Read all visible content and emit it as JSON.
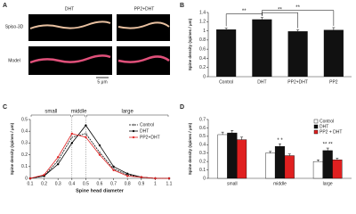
{
  "panel_a": {
    "label": "A",
    "columns": [
      "DHT",
      "PP2+DHT"
    ],
    "rows": [
      "Spiso-3D",
      "Model"
    ],
    "scale_bar": "5 μm"
  },
  "chart_data": [
    {
      "type": "bar",
      "panel": "B",
      "categories": [
        "Control",
        "DHT",
        "PP2+DHT",
        "PP2"
      ],
      "values": [
        1.03,
        1.25,
        0.99,
        1.02
      ],
      "errors": [
        0.03,
        0.04,
        0.03,
        0.05
      ],
      "color": "#111111",
      "ylim": [
        0,
        1.4
      ],
      "yticks": [
        0,
        0.2,
        0.4,
        0.6,
        0.8,
        1,
        1.2,
        1.4
      ],
      "ylabel": "Spine density (spines / μm)",
      "annotations": [
        {
          "text": "**",
          "between": [
            "Control",
            "DHT"
          ]
        },
        {
          "text": "**",
          "between": [
            "DHT",
            "PP2+DHT"
          ]
        },
        {
          "text": "**",
          "between": [
            "DHT",
            "PP2"
          ]
        }
      ]
    },
    {
      "type": "line",
      "panel": "C",
      "x": [
        0.1,
        0.2,
        0.3,
        0.4,
        0.5,
        0.6,
        0.7,
        0.8,
        0.9,
        1,
        1.1
      ],
      "xlim": [
        0.1,
        1.1
      ],
      "xticks": [
        0.1,
        0.2,
        0.3,
        0.4,
        0.5,
        0.6,
        0.7,
        0.8,
        0.9,
        1,
        1.1
      ],
      "ylim": [
        0,
        0.5
      ],
      "yticks": [
        0,
        0.1,
        0.2,
        0.3,
        0.4,
        0.5
      ],
      "xlabel": "Spine head diameter",
      "ylabel": "Spine density (spines / μm)",
      "regions": [
        {
          "label": "small",
          "range": [
            0.1,
            0.4
          ]
        },
        {
          "label": "middle",
          "range": [
            0.4,
            0.5
          ]
        },
        {
          "label": "large",
          "range": [
            0.5,
            1.1
          ]
        }
      ],
      "series": [
        {
          "name": "Control",
          "color": "#000000",
          "dashed": true,
          "marker_fill": "#ffffff",
          "values": [
            0,
            0.02,
            0.15,
            0.35,
            0.38,
            0.22,
            0.08,
            0.03,
            0.01,
            0,
            0
          ]
        },
        {
          "name": "DHT",
          "color": "#000000",
          "dashed": false,
          "marker_fill": "#000000",
          "values": [
            0,
            0.02,
            0.12,
            0.3,
            0.45,
            0.28,
            0.1,
            0.04,
            0.01,
            0,
            0
          ]
        },
        {
          "name": "PP2+DHT",
          "color": "#e02020",
          "dashed": false,
          "marker_fill": "#e02020",
          "values": [
            0,
            0.03,
            0.18,
            0.38,
            0.35,
            0.2,
            0.07,
            0.02,
            0.01,
            0,
            0
          ]
        }
      ]
    },
    {
      "type": "bar",
      "panel": "D",
      "categories": [
        "small",
        "middle",
        "large"
      ],
      "ylim": [
        0,
        0.7
      ],
      "yticks": [
        0,
        0.1,
        0.2,
        0.3,
        0.4,
        0.5,
        0.6,
        0.7
      ],
      "ylabel": "Spine density (spines / μm)",
      "annotations": [
        {
          "text": "* *",
          "category": "middle"
        },
        {
          "text": "** **",
          "category": "large"
        }
      ],
      "series": [
        {
          "name": "Control",
          "color": "#ffffff",
          "values": [
            0.52,
            0.3,
            0.2
          ],
          "errors": [
            0.03,
            0.02,
            0.02
          ]
        },
        {
          "name": "DHT",
          "color": "#111111",
          "values": [
            0.54,
            0.38,
            0.33
          ],
          "errors": [
            0.03,
            0.03,
            0.03
          ]
        },
        {
          "name": "PP2 + DHT",
          "color": "#e02020",
          "values": [
            0.46,
            0.27,
            0.22
          ],
          "errors": [
            0.03,
            0.02,
            0.02
          ]
        }
      ]
    }
  ]
}
